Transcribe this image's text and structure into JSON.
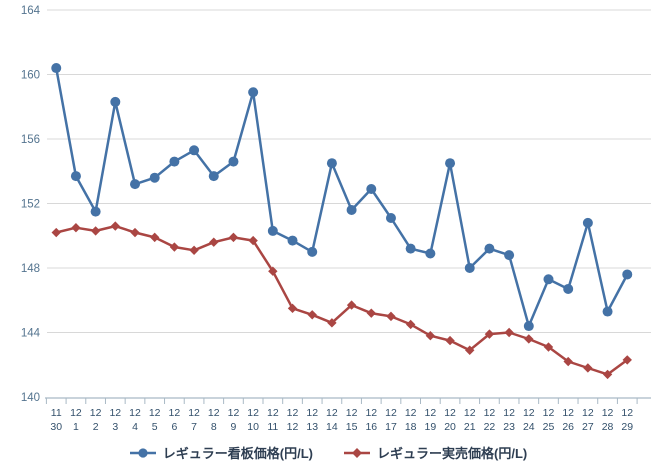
{
  "chart_data": {
    "type": "line",
    "title": "",
    "xlabel": "",
    "ylabel": "",
    "ylim": [
      140,
      164
    ],
    "yticks": [
      164,
      160,
      156,
      152,
      148,
      144,
      140
    ],
    "grid": "horizontal",
    "legend_position": "bottom",
    "categories_month": [
      "11",
      "12",
      "12",
      "12",
      "12",
      "12",
      "12",
      "12",
      "12",
      "12",
      "12",
      "12",
      "12",
      "12",
      "12",
      "12",
      "12",
      "12",
      "12",
      "12",
      "12",
      "12",
      "12",
      "12",
      "12",
      "12",
      "12",
      "12",
      "12",
      "12"
    ],
    "categories_day": [
      "30",
      "1",
      "2",
      "3",
      "4",
      "5",
      "6",
      "7",
      "8",
      "9",
      "10",
      "11",
      "12",
      "13",
      "14",
      "15",
      "16",
      "17",
      "18",
      "19",
      "20",
      "21",
      "22",
      "23",
      "24",
      "25",
      "26",
      "27",
      "28",
      "29"
    ],
    "series": [
      {
        "name": "レギュラー看板価格(円/L)",
        "marker": "circle",
        "color": "#4472a6",
        "values": [
          160.4,
          153.7,
          151.5,
          158.3,
          153.2,
          153.6,
          154.6,
          155.3,
          153.7,
          154.6,
          158.9,
          150.3,
          149.7,
          149.0,
          154.5,
          151.6,
          152.9,
          151.1,
          149.2,
          148.9,
          154.5,
          148.0,
          149.2,
          148.8,
          144.4,
          147.3,
          146.7,
          150.8,
          145.3,
          147.6
        ]
      },
      {
        "name": "レギュラー実売価格(円/L)",
        "marker": "diamond",
        "color": "#aa4643",
        "values": [
          150.2,
          150.5,
          150.3,
          150.6,
          150.2,
          149.9,
          149.3,
          149.1,
          149.6,
          149.9,
          149.7,
          147.8,
          145.5,
          145.1,
          144.6,
          145.7,
          145.2,
          145.0,
          144.5,
          143.8,
          143.5,
          142.9,
          143.9,
          144.0,
          143.6,
          143.1,
          142.2,
          141.8,
          141.4,
          142.3
        ]
      }
    ]
  },
  "colors": {
    "background": "#ffffff",
    "gridline": "#d8d8d8",
    "axis_line": "#a9b9c5",
    "tick": "#a9b9c5",
    "y_label": "#54748f",
    "x_label": "#33506b",
    "legend_text": "#2e3e52"
  }
}
